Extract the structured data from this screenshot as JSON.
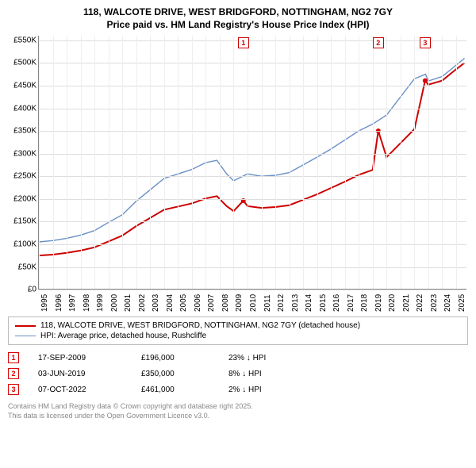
{
  "title_line1": "118, WALCOTE DRIVE, WEST BRIDGFORD, NOTTINGHAM, NG2 7GY",
  "title_line2": "Price paid vs. HM Land Registry's House Price Index (HPI)",
  "chart": {
    "type": "line",
    "background_color": "#ffffff",
    "grid_color": "#dddddd",
    "x": {
      "min": 1995,
      "max": 2025.8,
      "ticks": [
        1995,
        1996,
        1997,
        1998,
        1999,
        2000,
        2001,
        2002,
        2003,
        2004,
        2005,
        2006,
        2007,
        2008,
        2009,
        2010,
        2011,
        2012,
        2013,
        2014,
        2015,
        2016,
        2017,
        2018,
        2019,
        2020,
        2021,
        2022,
        2023,
        2024,
        2025
      ]
    },
    "y": {
      "min": 0,
      "max": 560000,
      "ticks": [
        0,
        50000,
        100000,
        150000,
        200000,
        250000,
        300000,
        350000,
        400000,
        450000,
        500000,
        550000
      ],
      "labels": [
        "£0",
        "£50K",
        "£100K",
        "£150K",
        "£200K",
        "£250K",
        "£300K",
        "£350K",
        "£400K",
        "£450K",
        "£500K",
        "£550K"
      ]
    },
    "series": [
      {
        "name": "hpi",
        "label": "HPI: Average price, detached house, Rushcliffe",
        "color": "#6a8fc6",
        "width": 1.4,
        "data": [
          [
            1995,
            105000
          ],
          [
            1996,
            108000
          ],
          [
            1997,
            113000
          ],
          [
            1998,
            120000
          ],
          [
            1999,
            130000
          ],
          [
            2000,
            148000
          ],
          [
            2001,
            165000
          ],
          [
            2002,
            195000
          ],
          [
            2003,
            220000
          ],
          [
            2004,
            245000
          ],
          [
            2005,
            255000
          ],
          [
            2006,
            265000
          ],
          [
            2007,
            280000
          ],
          [
            2007.8,
            285000
          ],
          [
            2008.5,
            255000
          ],
          [
            2009,
            240000
          ],
          [
            2010,
            255000
          ],
          [
            2011,
            250000
          ],
          [
            2012,
            252000
          ],
          [
            2013,
            258000
          ],
          [
            2014,
            275000
          ],
          [
            2015,
            292000
          ],
          [
            2016,
            310000
          ],
          [
            2017,
            330000
          ],
          [
            2018,
            350000
          ],
          [
            2019,
            365000
          ],
          [
            2020,
            385000
          ],
          [
            2021,
            425000
          ],
          [
            2022,
            465000
          ],
          [
            2022.8,
            475000
          ],
          [
            2023,
            460000
          ],
          [
            2024,
            470000
          ],
          [
            2025,
            495000
          ],
          [
            2025.6,
            510000
          ]
        ]
      },
      {
        "name": "price_paid",
        "label": "118, WALCOTE DRIVE, WEST BRIDGFORD, NOTTINGHAM, NG2 7GY (detached house)",
        "color": "#cc0000",
        "width": 2,
        "data": [
          [
            1995,
            75000
          ],
          [
            1996,
            77000
          ],
          [
            1997,
            81000
          ],
          [
            1998,
            86000
          ],
          [
            1999,
            93000
          ],
          [
            2000,
            106000
          ],
          [
            2001,
            119000
          ],
          [
            2002,
            140000
          ],
          [
            2003,
            158000
          ],
          [
            2004,
            176000
          ],
          [
            2005,
            183000
          ],
          [
            2006,
            190000
          ],
          [
            2007,
            201000
          ],
          [
            2007.8,
            206000
          ],
          [
            2008.5,
            184000
          ],
          [
            2009,
            173000
          ],
          [
            2009.7,
            196000
          ],
          [
            2010,
            184000
          ],
          [
            2011,
            180000
          ],
          [
            2012,
            182000
          ],
          [
            2013,
            186000
          ],
          [
            2014,
            198000
          ],
          [
            2015,
            210000
          ],
          [
            2016,
            224000
          ],
          [
            2017,
            238000
          ],
          [
            2018,
            253000
          ],
          [
            2019,
            264000
          ],
          [
            2019.4,
            350000
          ],
          [
            2020,
            292000
          ],
          [
            2021,
            323000
          ],
          [
            2022,
            354000
          ],
          [
            2022.77,
            461000
          ],
          [
            2023,
            452000
          ],
          [
            2024,
            461000
          ],
          [
            2025,
            486000
          ],
          [
            2025.6,
            500000
          ]
        ]
      }
    ],
    "sale_points": [
      {
        "x": 2009.7,
        "y": 196000
      },
      {
        "x": 2019.4,
        "y": 350000
      },
      {
        "x": 2022.77,
        "y": 461000
      }
    ],
    "marker_boxes": [
      {
        "n": "1",
        "x": 2009.7,
        "color": "#cc0000"
      },
      {
        "n": "2",
        "x": 2019.4,
        "color": "#cc0000"
      },
      {
        "n": "3",
        "x": 2022.77,
        "color": "#cc0000"
      }
    ]
  },
  "legend": [
    {
      "color": "#cc0000",
      "width": 2,
      "key": "chart.series.1.label"
    },
    {
      "color": "#6a8fc6",
      "width": 1.4,
      "key": "chart.series.0.label"
    }
  ],
  "sales": [
    {
      "n": "1",
      "date": "17-SEP-2009",
      "price": "£196,000",
      "diff": "23% ↓ HPI"
    },
    {
      "n": "2",
      "date": "03-JUN-2019",
      "price": "£350,000",
      "diff": "8% ↓ HPI"
    },
    {
      "n": "3",
      "date": "07-OCT-2022",
      "price": "£461,000",
      "diff": "2% ↓ HPI"
    }
  ],
  "footer_line1": "Contains HM Land Registry data © Crown copyright and database right 2025.",
  "footer_line2": "This data is licensed under the Open Government Licence v3.0."
}
